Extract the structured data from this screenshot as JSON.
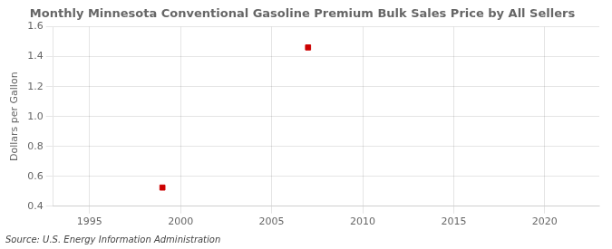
{
  "chart_data": {
    "type": "scatter",
    "title": "Monthly Minnesota Conventional Gasoline Premium Bulk Sales Price by All Sellers",
    "y_label": "Dollars per Gallon",
    "annotation": "Source: U.S. Energy Information Administration",
    "x": [
      1999.0,
      2007.0
    ],
    "values": [
      0.525,
      1.462
    ],
    "color": "#CC0000",
    "marker": "square",
    "xlim": [
      1993,
      2023
    ],
    "ylim": [
      0.4,
      1.6
    ],
    "xticks": [
      1995,
      2000,
      2005,
      2010,
      2015,
      2020
    ],
    "yticks": [
      0.4,
      0.6,
      0.8,
      {
        "value": 1.0,
        "label": "1.0"
      },
      1.2,
      1.4,
      1.6
    ],
    "grid": true
  }
}
